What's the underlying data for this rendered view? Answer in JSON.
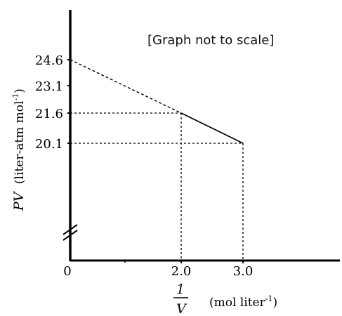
{
  "chart_data": {
    "type": "line",
    "note": "[Graph not to scale]",
    "xlabel": {
      "numerator": "1",
      "denominator": "V",
      "unit": "(mol liter",
      "unit_exp": "-1",
      "unit_close": ")"
    },
    "ylabel": {
      "symbol": "PV",
      "unit": "(liter-atm mol",
      "unit_exp": "-1",
      "unit_close": ")"
    },
    "x_ticks": [
      {
        "value": 0,
        "label": "0"
      },
      {
        "value": 2.0,
        "label": "2.0"
      },
      {
        "value": 3.0,
        "label": "3.0"
      }
    ],
    "y_ticks": [
      {
        "value": 24.6,
        "label": "24.6"
      },
      {
        "value": 23.1,
        "label": "23.1"
      },
      {
        "value": 21.6,
        "label": "21.6"
      },
      {
        "value": 20.1,
        "label": "20.1"
      }
    ],
    "axis_break": true,
    "series": [
      {
        "line_style": "solid",
        "points": [
          {
            "x": 2.0,
            "y": 21.6
          },
          {
            "x": 3.0,
            "y": 20.1
          }
        ]
      },
      {
        "line_style": "dashed",
        "points": [
          {
            "x": 0,
            "y": 24.6
          },
          {
            "x": 2.0,
            "y": 21.6
          }
        ]
      }
    ],
    "guide_lines": [
      {
        "x": 2.0,
        "y": 21.6
      },
      {
        "x": 3.0,
        "y": 20.1
      }
    ],
    "grid": false
  }
}
